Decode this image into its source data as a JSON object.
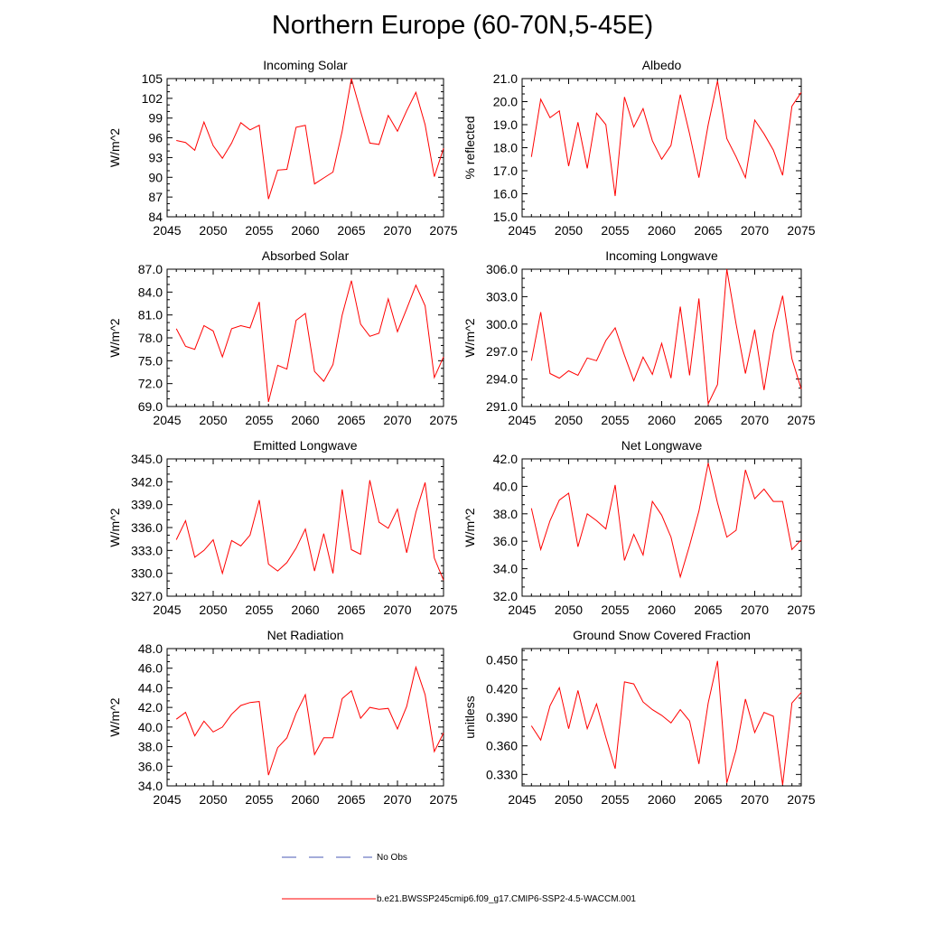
{
  "title": "Northern Europe (60-70N,5-45E)",
  "legend": {
    "no_obs_label": "No Obs",
    "model_label": "b.e21.BWSSP245cmip6.f09_g17.CMIP6-SSP2-4.5-WACCM.001",
    "obs_color": "#4a5ab4",
    "model_color": "#ff0000"
  },
  "chart_data": [
    {
      "type": "line",
      "title": "Incoming Solar",
      "ylabel": "W/m^2",
      "xlim": [
        2045,
        2075
      ],
      "ylim": [
        84,
        105
      ],
      "xticks": [
        2045,
        2050,
        2055,
        2060,
        2065,
        2070,
        2075
      ],
      "yticks": [
        "84",
        "87",
        "90",
        "93",
        "96",
        "99",
        "102",
        "105"
      ],
      "series": [
        {
          "x": [
            2046,
            2047,
            2048,
            2049,
            2050,
            2051,
            2052,
            2053,
            2054,
            2055,
            2056,
            2057,
            2058,
            2059,
            2060,
            2061,
            2062,
            2063,
            2064,
            2065,
            2066,
            2067,
            2068,
            2069,
            2070,
            2071,
            2072,
            2073,
            2074,
            2075
          ],
          "values": [
            95.6,
            95.3,
            94.1,
            98.4,
            94.8,
            92.9,
            95.2,
            98.3,
            97.2,
            97.9,
            86.7,
            91.1,
            91.2,
            97.6,
            97.9,
            89.0,
            89.9,
            90.8,
            97.0,
            105.0,
            100.0,
            95.2,
            95.0,
            99.4,
            97.0,
            100.1,
            102.9,
            98.0,
            90.1,
            94.4
          ]
        }
      ]
    },
    {
      "type": "line",
      "title": "Albedo",
      "ylabel": "% reflected",
      "xlim": [
        2045,
        2075
      ],
      "ylim": [
        15.0,
        21.0
      ],
      "xticks": [
        2045,
        2050,
        2055,
        2060,
        2065,
        2070,
        2075
      ],
      "yticks": [
        "15.0",
        "16.0",
        "17.0",
        "18.0",
        "19.0",
        "20.0",
        "21.0"
      ],
      "series": [
        {
          "x": [
            2046,
            2047,
            2048,
            2049,
            2050,
            2051,
            2052,
            2053,
            2054,
            2055,
            2056,
            2057,
            2058,
            2059,
            2060,
            2061,
            2062,
            2063,
            2064,
            2065,
            2066,
            2067,
            2068,
            2069,
            2070,
            2071,
            2072,
            2073,
            2074,
            2075
          ],
          "values": [
            17.6,
            20.1,
            19.3,
            19.6,
            17.2,
            19.1,
            17.1,
            19.5,
            19.0,
            15.9,
            20.2,
            18.9,
            19.7,
            18.3,
            17.5,
            18.1,
            20.3,
            18.6,
            16.7,
            19.0,
            20.9,
            18.4,
            17.6,
            16.7,
            19.2,
            18.6,
            17.9,
            16.8,
            19.8,
            20.4
          ]
        }
      ]
    },
    {
      "type": "line",
      "title": "Absorbed Solar",
      "ylabel": "W/m^2",
      "xlim": [
        2045,
        2075
      ],
      "ylim": [
        69.0,
        87.0
      ],
      "xticks": [
        2045,
        2050,
        2055,
        2060,
        2065,
        2070,
        2075
      ],
      "yticks": [
        "69.0",
        "72.0",
        "75.0",
        "78.0",
        "81.0",
        "84.0",
        "87.0"
      ],
      "series": [
        {
          "x": [
            2046,
            2047,
            2048,
            2049,
            2050,
            2051,
            2052,
            2053,
            2054,
            2055,
            2056,
            2057,
            2058,
            2059,
            2060,
            2061,
            2062,
            2063,
            2064,
            2065,
            2066,
            2067,
            2068,
            2069,
            2070,
            2071,
            2072,
            2073,
            2074,
            2075
          ],
          "values": [
            79.2,
            76.9,
            76.5,
            79.6,
            78.9,
            75.5,
            79.2,
            79.6,
            79.3,
            82.7,
            69.6,
            74.4,
            73.9,
            80.3,
            81.2,
            73.6,
            72.3,
            74.5,
            81.0,
            85.5,
            79.8,
            78.2,
            78.6,
            83.1,
            78.8,
            81.8,
            84.9,
            82.2,
            72.8,
            75.5
          ]
        }
      ]
    },
    {
      "type": "line",
      "title": "Incoming Longwave",
      "ylabel": "W/m^2",
      "xlim": [
        2045,
        2075
      ],
      "ylim": [
        291.0,
        306.0
      ],
      "xticks": [
        2045,
        2050,
        2055,
        2060,
        2065,
        2070,
        2075
      ],
      "yticks": [
        "291.0",
        "294.0",
        "297.0",
        "300.0",
        "303.0",
        "306.0"
      ],
      "series": [
        {
          "x": [
            2046,
            2047,
            2048,
            2049,
            2050,
            2051,
            2052,
            2053,
            2054,
            2055,
            2056,
            2057,
            2058,
            2059,
            2060,
            2061,
            2062,
            2063,
            2064,
            2065,
            2066,
            2067,
            2068,
            2069,
            2070,
            2071,
            2072,
            2073,
            2074,
            2075
          ],
          "values": [
            296.0,
            301.3,
            294.6,
            294.1,
            294.9,
            294.4,
            296.3,
            296.0,
            298.2,
            299.6,
            296.6,
            293.8,
            296.4,
            294.5,
            297.9,
            294.1,
            301.9,
            294.4,
            302.8,
            291.3,
            293.4,
            306.1,
            300.0,
            294.6,
            299.4,
            292.8,
            299.1,
            303.1,
            296.2,
            292.9
          ]
        }
      ]
    },
    {
      "type": "line",
      "title": "Emitted Longwave",
      "ylabel": "W/m^2",
      "xlim": [
        2045,
        2075
      ],
      "ylim": [
        327.0,
        345.0
      ],
      "xticks": [
        2045,
        2050,
        2055,
        2060,
        2065,
        2070,
        2075
      ],
      "yticks": [
        "327.0",
        "330.0",
        "333.0",
        "336.0",
        "339.0",
        "342.0",
        "345.0"
      ],
      "series": [
        {
          "x": [
            2046,
            2047,
            2048,
            2049,
            2050,
            2051,
            2052,
            2053,
            2054,
            2055,
            2056,
            2057,
            2058,
            2059,
            2060,
            2061,
            2062,
            2063,
            2064,
            2065,
            2066,
            2067,
            2068,
            2069,
            2070,
            2071,
            2072,
            2073,
            2074,
            2075
          ],
          "values": [
            334.4,
            336.9,
            332.1,
            333.0,
            334.4,
            330.0,
            334.3,
            333.6,
            335.0,
            339.6,
            331.2,
            330.3,
            331.4,
            333.3,
            335.8,
            330.3,
            335.2,
            330.0,
            341.0,
            333.1,
            332.5,
            342.2,
            336.7,
            335.9,
            338.4,
            332.7,
            338.0,
            341.9,
            332.0,
            329.1
          ]
        }
      ]
    },
    {
      "type": "line",
      "title": "Net Longwave",
      "ylabel": "W/m^2",
      "xlim": [
        2045,
        2075
      ],
      "ylim": [
        32.0,
        42.0
      ],
      "xticks": [
        2045,
        2050,
        2055,
        2060,
        2065,
        2070,
        2075
      ],
      "yticks": [
        "32.0",
        "34.0",
        "36.0",
        "38.0",
        "40.0",
        "42.0"
      ],
      "series": [
        {
          "x": [
            2046,
            2047,
            2048,
            2049,
            2050,
            2051,
            2052,
            2053,
            2054,
            2055,
            2056,
            2057,
            2058,
            2059,
            2060,
            2061,
            2062,
            2063,
            2064,
            2065,
            2066,
            2067,
            2068,
            2069,
            2070,
            2071,
            2072,
            2073,
            2074,
            2075
          ],
          "values": [
            38.4,
            35.4,
            37.5,
            39.0,
            39.5,
            35.6,
            38.0,
            37.5,
            36.9,
            40.1,
            34.6,
            36.5,
            35.0,
            38.9,
            37.9,
            36.3,
            33.4,
            35.7,
            38.2,
            41.7,
            38.8,
            36.3,
            36.8,
            41.2,
            39.1,
            39.8,
            38.9,
            38.9,
            35.4,
            36.1
          ]
        }
      ]
    },
    {
      "type": "line",
      "title": "Net Radiation",
      "ylabel": "W/m^2",
      "xlim": [
        2045,
        2075
      ],
      "ylim": [
        34.0,
        48.0
      ],
      "xticks": [
        2045,
        2050,
        2055,
        2060,
        2065,
        2070,
        2075
      ],
      "yticks": [
        "34.0",
        "36.0",
        "38.0",
        "40.0",
        "42.0",
        "44.0",
        "46.0",
        "48.0"
      ],
      "series": [
        {
          "x": [
            2046,
            2047,
            2048,
            2049,
            2050,
            2051,
            2052,
            2053,
            2054,
            2055,
            2056,
            2057,
            2058,
            2059,
            2060,
            2061,
            2062,
            2063,
            2064,
            2065,
            2066,
            2067,
            2068,
            2069,
            2070,
            2071,
            2072,
            2073,
            2074,
            2075
          ],
          "values": [
            40.8,
            41.5,
            39.1,
            40.6,
            39.5,
            40.0,
            41.3,
            42.2,
            42.5,
            42.6,
            35.1,
            37.9,
            38.9,
            41.4,
            43.3,
            37.2,
            38.9,
            38.9,
            42.9,
            43.7,
            40.9,
            42.0,
            41.8,
            41.9,
            39.8,
            42.1,
            46.1,
            43.3,
            37.5,
            39.4
          ]
        }
      ]
    },
    {
      "type": "line",
      "title": "Ground Snow Covered Fraction",
      "ylabel": "unitless",
      "xlim": [
        2045,
        2075
      ],
      "ylim": [
        0.318,
        0.462
      ],
      "xticks": [
        2045,
        2050,
        2055,
        2060,
        2065,
        2070,
        2075
      ],
      "yticks": [
        "0.330",
        "0.360",
        "0.390",
        "0.420",
        "0.450"
      ],
      "series": [
        {
          "x": [
            2046,
            2047,
            2048,
            2049,
            2050,
            2051,
            2052,
            2053,
            2054,
            2055,
            2056,
            2057,
            2058,
            2059,
            2060,
            2061,
            2062,
            2063,
            2064,
            2065,
            2066,
            2067,
            2068,
            2069,
            2070,
            2071,
            2072,
            2073,
            2074,
            2075
          ],
          "values": [
            0.381,
            0.366,
            0.402,
            0.421,
            0.378,
            0.418,
            0.378,
            0.404,
            0.369,
            0.336,
            0.427,
            0.425,
            0.406,
            0.398,
            0.392,
            0.384,
            0.398,
            0.386,
            0.341,
            0.405,
            0.449,
            0.321,
            0.356,
            0.409,
            0.374,
            0.395,
            0.391,
            0.319,
            0.405,
            0.416
          ]
        }
      ]
    }
  ]
}
